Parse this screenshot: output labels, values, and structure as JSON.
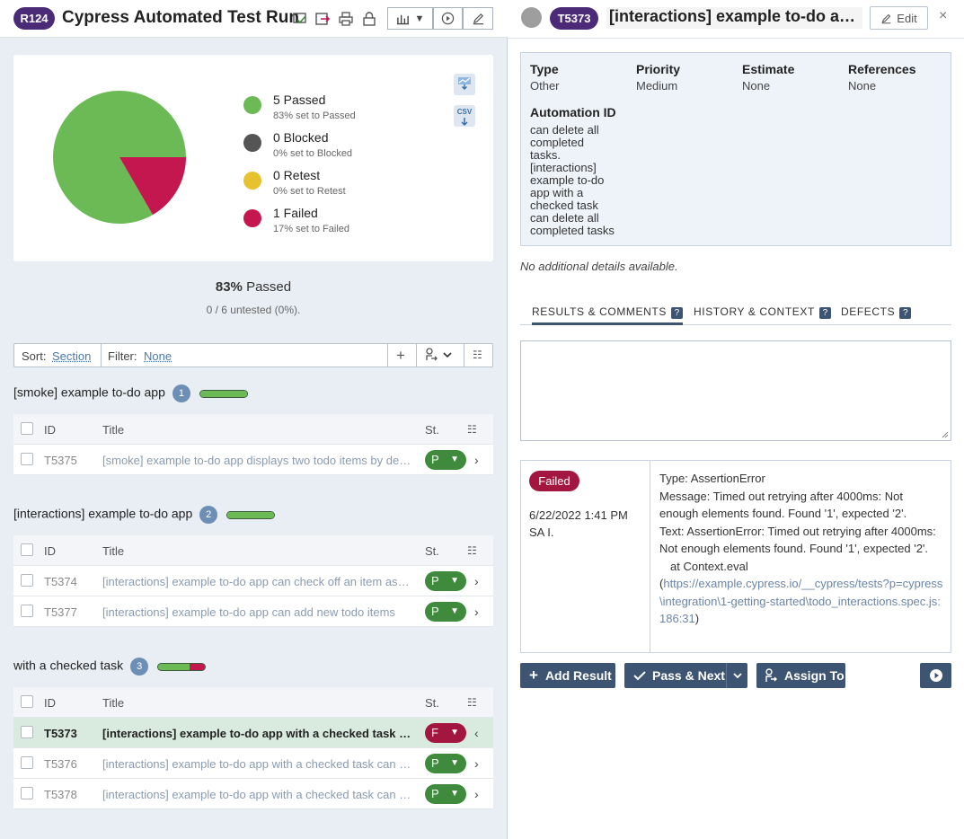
{
  "run": {
    "id_badge": "R124",
    "title": "Cypress Automated Test Run",
    "stats": [
      {
        "label": "5 Passed",
        "sub": "83% set to Passed",
        "color": "#6bba56",
        "count": 5
      },
      {
        "label": "0 Blocked",
        "sub": "0% set to Blocked",
        "color": "#555555",
        "count": 0
      },
      {
        "label": "0 Retest",
        "sub": "0% set to Retest",
        "color": "#e8c12f",
        "count": 0
      },
      {
        "label": "1 Failed",
        "sub": "17% set to Failed",
        "color": "#c4174f",
        "count": 1
      }
    ],
    "export_chart_icon": "chart-export-icon",
    "export_csv_label": "CSV",
    "passed_pct": "83%",
    "passed_word": "Passed",
    "untested": "0 / 6 untested (0%)."
  },
  "toolbar": {
    "sort_label": "Sort:",
    "sort_value": "Section",
    "filter_label": "Filter:",
    "filter_value": "None"
  },
  "table_headers": {
    "id": "ID",
    "title": "Title",
    "status": "St."
  },
  "sections": [
    {
      "name": "[smoke] example to-do app",
      "count": "1",
      "bar": {
        "passed_pct": 100,
        "failed_pct": 0
      },
      "rows": [
        {
          "id": "T5375",
          "title": "[smoke] example to-do app displays two todo items by default",
          "status": "P",
          "selected": false
        }
      ]
    },
    {
      "name": "[interactions] example to-do app",
      "count": "2",
      "bar": {
        "passed_pct": 100,
        "failed_pct": 0
      },
      "rows": [
        {
          "id": "T5374",
          "title": "[interactions] example to-do app can check off an item as completed",
          "status": "P",
          "selected": false
        },
        {
          "id": "T5377",
          "title": "[interactions] example to-do app can add new todo items",
          "status": "P",
          "selected": false
        }
      ]
    },
    {
      "name": "with a checked task",
      "count": "3",
      "bar": {
        "passed_pct": 67,
        "failed_pct": 33
      },
      "rows": [
        {
          "id": "T5373",
          "title": "[interactions] example to-do app with a checked task can delete all completed tasks",
          "status": "F",
          "selected": true
        },
        {
          "id": "T5376",
          "title": "[interactions] example to-do app with a checked task can filter for uncompleted tasks",
          "status": "P",
          "selected": false
        },
        {
          "id": "T5378",
          "title": "[interactions] example to-do app with a checked task can filter for completed tasks",
          "status": "P",
          "selected": false
        }
      ]
    }
  ],
  "case": {
    "id_badge": "T5373",
    "title": "[interactions] example to-do app with a checked task can delete all completed tasks",
    "edit_label": "Edit",
    "close": "×",
    "props": {
      "type_k": "Type",
      "type_v": "Other",
      "priority_k": "Priority",
      "priority_v": "Medium",
      "estimate_k": "Estimate",
      "estimate_v": "None",
      "references_k": "References",
      "references_v": "None",
      "automation_k": "Automation ID",
      "automation_lines": [
        "can delete all",
        "completed",
        "tasks.",
        "[interactions]",
        "example to-do",
        "app with a",
        "checked task",
        "can delete all",
        "completed tasks"
      ]
    },
    "no_details": "No additional details available.",
    "tabs": [
      {
        "label": "RESULTS & COMMENTS",
        "help": "?"
      },
      {
        "label": "HISTORY & CONTEXT",
        "help": "?"
      },
      {
        "label": "DEFECTS",
        "help": "?"
      }
    ],
    "result": {
      "status": "Failed",
      "date": "6/22/2022 1:41 PM",
      "user": "SA I.",
      "line_type": "Type: AssertionError",
      "line_message": "Message: Timed out retrying after 4000ms: Not enough elements found. Found '1', expected '2'.",
      "line_text": "Text: AssertionError: Timed out retrying after 4000ms: Not enough elements found. Found '1', expected '2'.",
      "line_at": "at Context.eval",
      "line_link": "https://example.cypress.io/__cypress/tests?p=cypress\\integration\\1-getting-started\\todo_interactions.spec.js:186:31"
    },
    "actions": {
      "add_result": "Add Result",
      "pass_next": "Pass & Next",
      "assign_to": "Assign To"
    }
  }
}
